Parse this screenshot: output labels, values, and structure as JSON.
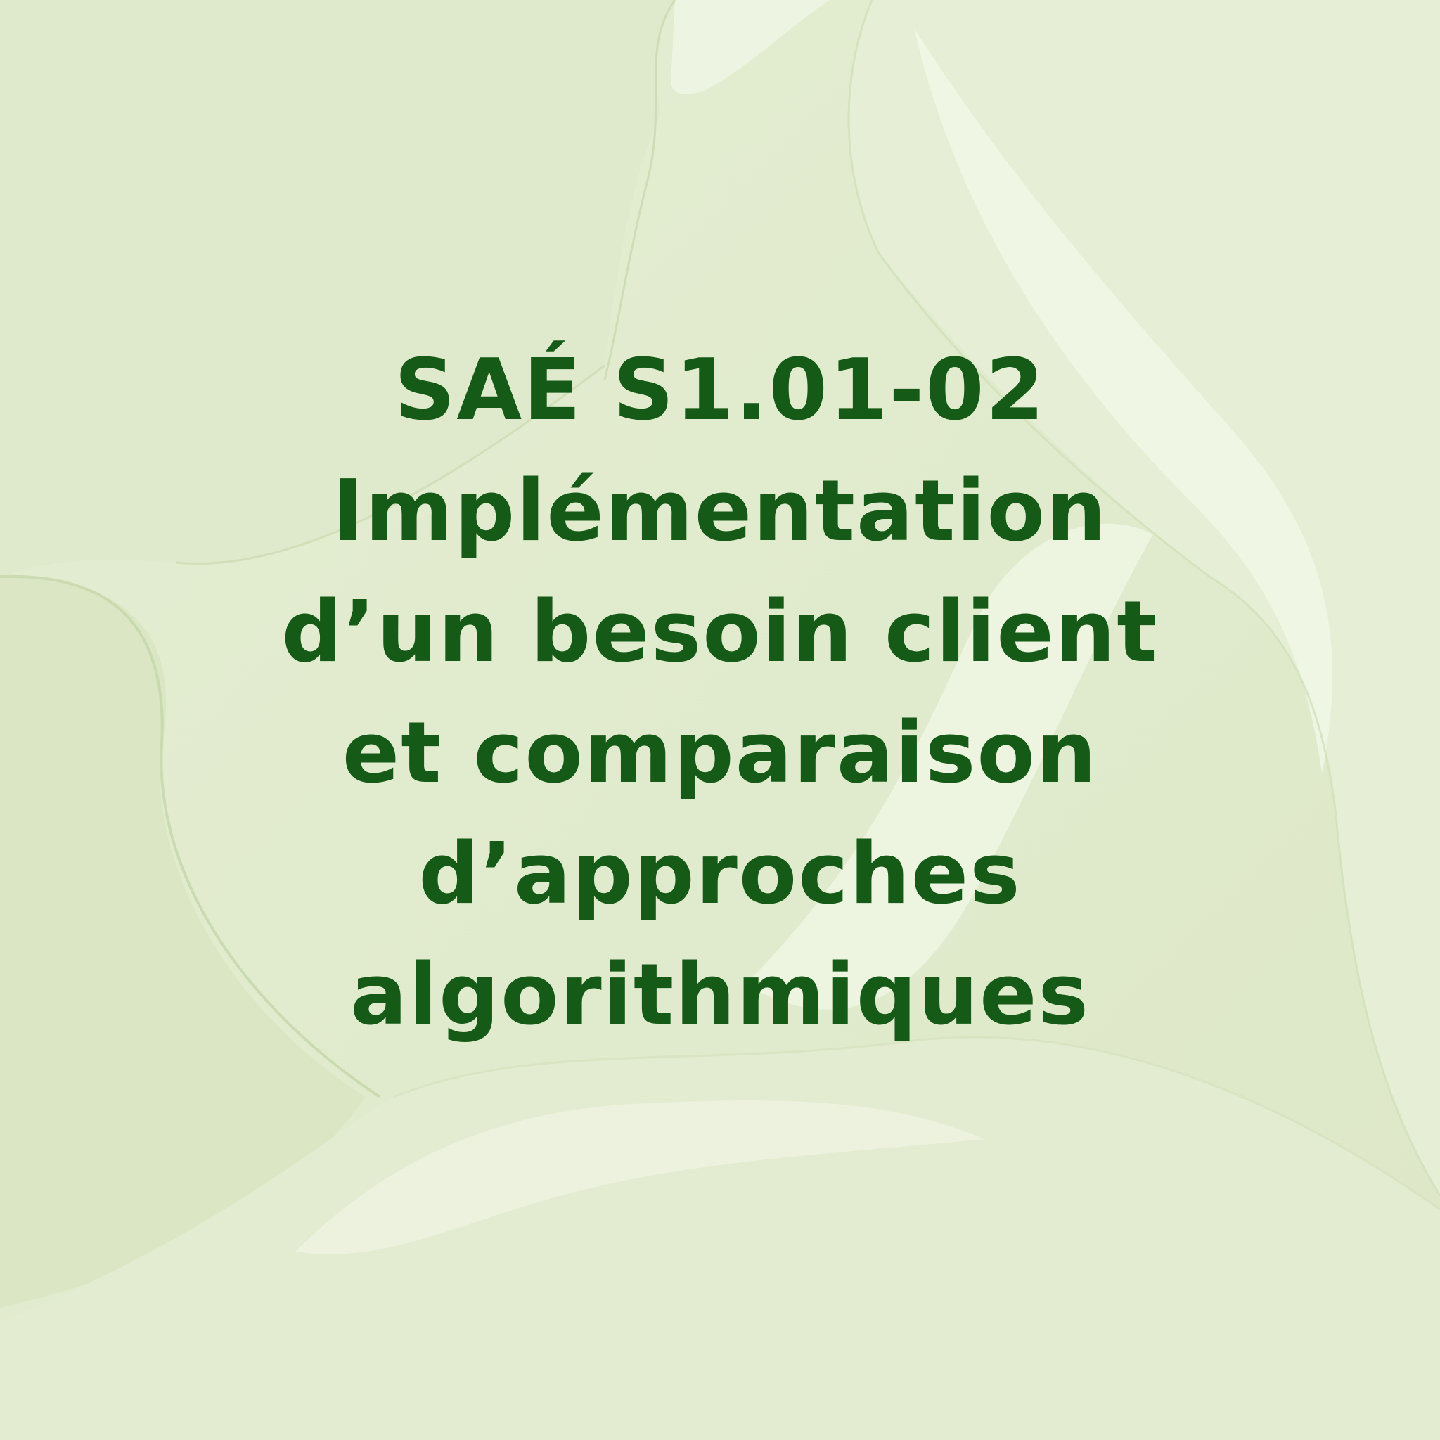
{
  "background": {
    "base_color": "#e2ecd0",
    "highlight_color": "#eef5e2",
    "shadow_color": "#c9d9ae",
    "texture": "soft-green-cream-swirls"
  },
  "text_color": "#155a17",
  "title": {
    "lines": [
      "SAÉ S1.01-02",
      "Implémentation",
      "d’un besoin client",
      "et comparaison",
      "d’approches",
      "algorithmiques"
    ]
  }
}
